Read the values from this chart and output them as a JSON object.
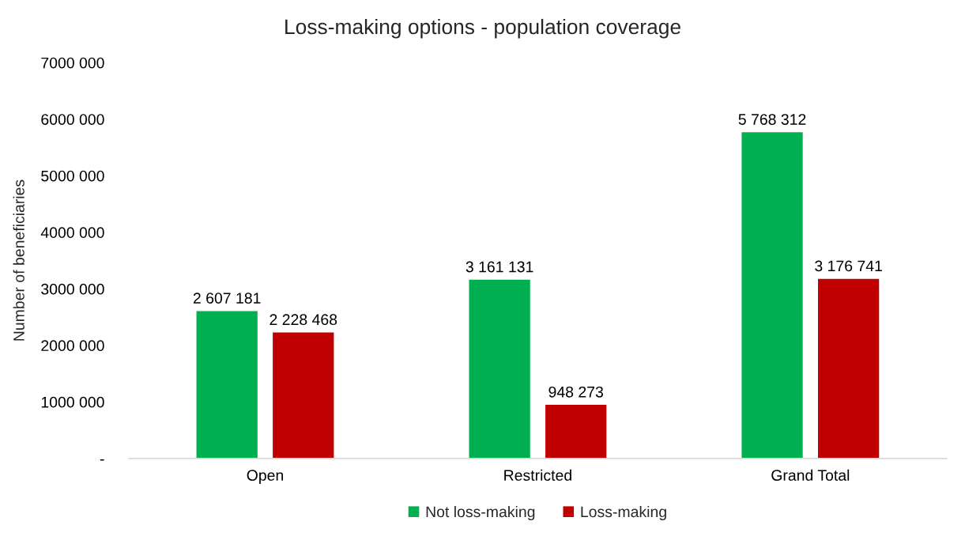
{
  "chart_data": {
    "type": "bar",
    "title": "Loss-making options - population coverage",
    "ylabel": "Number of beneficiaries",
    "categories": [
      "Open",
      "Restricted",
      "Grand Total"
    ],
    "series": [
      {
        "name": "Not loss-making",
        "color": "#00b050",
        "values": [
          2607181,
          3161131,
          5768312
        ],
        "value_labels": [
          "2 607 181",
          "3 161 131",
          "5 768 312"
        ]
      },
      {
        "name": "Loss-making",
        "color": "#c00000",
        "values": [
          2228468,
          948273,
          3176741
        ],
        "value_labels": [
          "2 228 468",
          "948 273",
          "3 176 741"
        ]
      }
    ],
    "ylim": [
      0,
      7000000
    ],
    "yticks": [
      {
        "value": 0,
        "label": "-"
      },
      {
        "value": 1000000,
        "label": "1000 000"
      },
      {
        "value": 2000000,
        "label": "2000 000"
      },
      {
        "value": 3000000,
        "label": "3000 000"
      },
      {
        "value": 4000000,
        "label": "4000 000"
      },
      {
        "value": 5000000,
        "label": "5000 000"
      },
      {
        "value": 6000000,
        "label": "6000 000"
      },
      {
        "value": 7000000,
        "label": "7000 000"
      }
    ],
    "grid": false,
    "legend": "bottom"
  }
}
